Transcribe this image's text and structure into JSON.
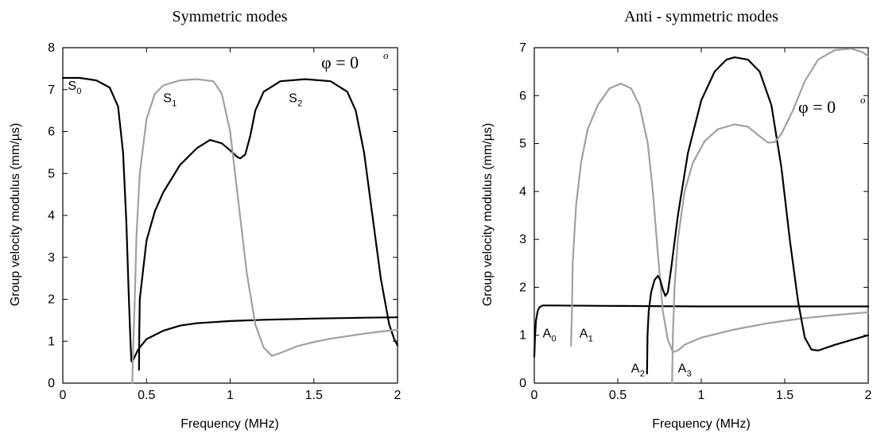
{
  "colors": {
    "dark": "#000000",
    "light": "#a0a0a0"
  },
  "chart_data": [
    {
      "type": "line",
      "title": "Symmetric modes",
      "xlabel": "Frequency (MHz)",
      "ylabel": "Group velocity modulus (mm/µs)",
      "xlim": [
        0,
        2
      ],
      "ylim": [
        0,
        8
      ],
      "xticks": [
        0,
        0.5,
        1,
        1.5,
        2
      ],
      "xtick_labels": [
        "0",
        "0.5",
        "1",
        "1.5",
        "2"
      ],
      "yticks": [
        0,
        1,
        2,
        3,
        4,
        5,
        6,
        7,
        8
      ],
      "ytick_labels": [
        "0",
        "1",
        "2",
        "3",
        "4",
        "5",
        "6",
        "7",
        "8"
      ],
      "grid": false,
      "annotation": {
        "phi": "φ = 0",
        "superscript": "o"
      },
      "mode_labels": [
        {
          "main": "S",
          "sub": "0",
          "x": 0.03,
          "y": 7.0
        },
        {
          "main": "S",
          "sub": "1",
          "x": 0.6,
          "y": 6.7
        },
        {
          "main": "S",
          "sub": "2",
          "x": 1.35,
          "y": 6.7
        }
      ],
      "series": [
        {
          "color": "dark",
          "points": [
            [
              0,
              7.28
            ],
            [
              0.1,
              7.28
            ],
            [
              0.2,
              7.22
            ],
            [
              0.28,
              7.05
            ],
            [
              0.33,
              6.6
            ],
            [
              0.36,
              5.5
            ],
            [
              0.38,
              3.8
            ],
            [
              0.395,
              2.0
            ],
            [
              0.405,
              0.9
            ],
            [
              0.41,
              0.52
            ],
            [
              0.42,
              0.55
            ],
            [
              0.45,
              0.8
            ],
            [
              0.5,
              1.05
            ],
            [
              0.6,
              1.25
            ],
            [
              0.7,
              1.37
            ],
            [
              0.8,
              1.43
            ],
            [
              1.0,
              1.48
            ],
            [
              1.2,
              1.51
            ],
            [
              1.5,
              1.54
            ],
            [
              1.8,
              1.56
            ],
            [
              2.0,
              1.57
            ]
          ]
        },
        {
          "color": "dark",
          "points": [
            [
              0.455,
              0.32
            ],
            [
              0.457,
              1.2
            ],
            [
              0.46,
              2.0
            ],
            [
              0.48,
              2.7
            ],
            [
              0.5,
              3.4
            ],
            [
              0.55,
              4.1
            ],
            [
              0.6,
              4.55
            ],
            [
              0.7,
              5.2
            ],
            [
              0.8,
              5.6
            ],
            [
              0.88,
              5.8
            ],
            [
              0.95,
              5.72
            ],
            [
              1.0,
              5.55
            ],
            [
              1.04,
              5.4
            ],
            [
              1.06,
              5.36
            ],
            [
              1.09,
              5.45
            ],
            [
              1.12,
              5.9
            ],
            [
              1.15,
              6.5
            ],
            [
              1.2,
              6.95
            ],
            [
              1.3,
              7.2
            ],
            [
              1.45,
              7.25
            ],
            [
              1.6,
              7.2
            ],
            [
              1.7,
              6.95
            ],
            [
              1.75,
              6.5
            ],
            [
              1.8,
              5.5
            ],
            [
              1.85,
              4.0
            ],
            [
              1.9,
              2.5
            ],
            [
              1.95,
              1.4
            ],
            [
              1.98,
              1.05
            ],
            [
              2.0,
              0.9
            ]
          ]
        },
        {
          "color": "light",
          "points": [
            [
              0.415,
              0
            ],
            [
              0.42,
              0.8
            ],
            [
              0.43,
              2.0
            ],
            [
              0.44,
              3.5
            ],
            [
              0.46,
              5.0
            ],
            [
              0.5,
              6.3
            ],
            [
              0.55,
              6.9
            ],
            [
              0.6,
              7.1
            ],
            [
              0.7,
              7.22
            ],
            [
              0.8,
              7.25
            ],
            [
              0.9,
              7.2
            ],
            [
              0.95,
              6.9
            ],
            [
              1.0,
              6.0
            ],
            [
              1.05,
              4.3
            ],
            [
              1.1,
              2.6
            ],
            [
              1.15,
              1.4
            ],
            [
              1.2,
              0.85
            ],
            [
              1.25,
              0.65
            ],
            [
              1.3,
              0.72
            ],
            [
              1.4,
              0.88
            ],
            [
              1.5,
              0.98
            ],
            [
              1.6,
              1.06
            ],
            [
              1.7,
              1.12
            ],
            [
              1.8,
              1.18
            ],
            [
              1.9,
              1.23
            ],
            [
              2.0,
              1.27
            ]
          ]
        }
      ]
    },
    {
      "type": "line",
      "title": "Anti - symmetric modes",
      "xlabel": "Frequency (MHz)",
      "ylabel": "Group velocity modulus (mm/µs)",
      "xlim": [
        0,
        2
      ],
      "ylim": [
        0,
        7
      ],
      "xticks": [
        0,
        0.5,
        1,
        1.5,
        2
      ],
      "xtick_labels": [
        "0",
        "0.5",
        "1",
        "1.5",
        "2"
      ],
      "yticks": [
        0,
        1,
        2,
        3,
        4,
        5,
        6,
        7
      ],
      "ytick_labels": [
        "0",
        "1",
        "2",
        "3",
        "4",
        "5",
        "6",
        "7"
      ],
      "grid": false,
      "annotation": {
        "phi": "φ = 0",
        "superscript": "o"
      },
      "mode_labels": [
        {
          "main": "A",
          "sub": "0",
          "x": 0.05,
          "y": 0.95
        },
        {
          "main": "A",
          "sub": "1",
          "x": 0.27,
          "y": 0.95
        },
        {
          "main": "A",
          "sub": "2",
          "x": 0.58,
          "y": 0.22
        },
        {
          "main": "A",
          "sub": "3",
          "x": 0.86,
          "y": 0.22
        }
      ],
      "series": [
        {
          "color": "dark",
          "points": [
            [
              0,
              0.55
            ],
            [
              0.005,
              1.0
            ],
            [
              0.01,
              1.3
            ],
            [
              0.02,
              1.5
            ],
            [
              0.03,
              1.58
            ],
            [
              0.05,
              1.62
            ],
            [
              0.1,
              1.62
            ],
            [
              0.5,
              1.61
            ],
            [
              1.0,
              1.6
            ],
            [
              1.5,
              1.6
            ],
            [
              2.0,
              1.6
            ]
          ]
        },
        {
          "color": "light",
          "points": [
            [
              0.22,
              0.78
            ],
            [
              0.225,
              1.5
            ],
            [
              0.23,
              2.5
            ],
            [
              0.25,
              3.7
            ],
            [
              0.28,
              4.6
            ],
            [
              0.32,
              5.3
            ],
            [
              0.38,
              5.8
            ],
            [
              0.45,
              6.15
            ],
            [
              0.52,
              6.25
            ],
            [
              0.58,
              6.15
            ],
            [
              0.63,
              5.8
            ],
            [
              0.68,
              5.0
            ],
            [
              0.71,
              4.0
            ],
            [
              0.74,
              2.7
            ],
            [
              0.77,
              1.5
            ],
            [
              0.8,
              0.9
            ],
            [
              0.83,
              0.65
            ],
            [
              0.86,
              0.68
            ],
            [
              0.9,
              0.8
            ],
            [
              1.0,
              0.95
            ],
            [
              1.2,
              1.12
            ],
            [
              1.4,
              1.25
            ],
            [
              1.6,
              1.35
            ],
            [
              1.8,
              1.42
            ],
            [
              2.0,
              1.48
            ]
          ]
        },
        {
          "color": "dark",
          "points": [
            [
              0.675,
              0.2
            ],
            [
              0.678,
              1.0
            ],
            [
              0.685,
              1.5
            ],
            [
              0.7,
              1.9
            ],
            [
              0.72,
              2.15
            ],
            [
              0.74,
              2.24
            ],
            [
              0.755,
              2.15
            ],
            [
              0.77,
              1.95
            ],
            [
              0.785,
              1.82
            ],
            [
              0.8,
              1.9
            ],
            [
              0.82,
              2.4
            ],
            [
              0.86,
              3.5
            ],
            [
              0.92,
              4.8
            ],
            [
              1.0,
              5.9
            ],
            [
              1.08,
              6.5
            ],
            [
              1.15,
              6.75
            ],
            [
              1.2,
              6.8
            ],
            [
              1.28,
              6.75
            ],
            [
              1.35,
              6.5
            ],
            [
              1.42,
              5.8
            ],
            [
              1.48,
              4.5
            ],
            [
              1.53,
              3.0
            ],
            [
              1.58,
              1.7
            ],
            [
              1.62,
              0.95
            ],
            [
              1.66,
              0.7
            ],
            [
              1.7,
              0.68
            ],
            [
              1.8,
              0.8
            ],
            [
              1.9,
              0.9
            ],
            [
              2.0,
              1.0
            ]
          ]
        },
        {
          "color": "light",
          "points": [
            [
              0.825,
              0
            ],
            [
              0.83,
              1.0
            ],
            [
              0.84,
              2.0
            ],
            [
              0.86,
              3.0
            ],
            [
              0.9,
              4.0
            ],
            [
              0.95,
              4.6
            ],
            [
              1.02,
              5.05
            ],
            [
              1.1,
              5.3
            ],
            [
              1.2,
              5.4
            ],
            [
              1.28,
              5.35
            ],
            [
              1.35,
              5.15
            ],
            [
              1.4,
              5.02
            ],
            [
              1.44,
              5.03
            ],
            [
              1.48,
              5.2
            ],
            [
              1.55,
              5.7
            ],
            [
              1.62,
              6.3
            ],
            [
              1.7,
              6.75
            ],
            [
              1.8,
              6.95
            ],
            [
              1.9,
              6.98
            ],
            [
              1.97,
              6.9
            ],
            [
              2.0,
              6.82
            ]
          ]
        }
      ]
    }
  ]
}
